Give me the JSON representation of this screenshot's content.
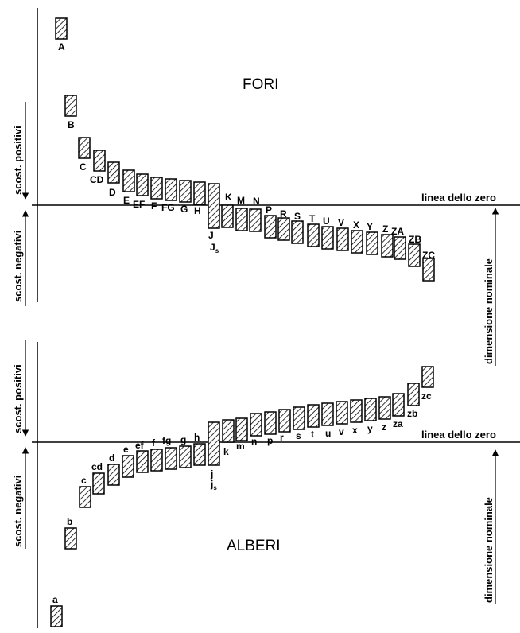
{
  "holes": {
    "title": "FORI",
    "zero_line_label": "linea dello zero",
    "positive_label": "scost. positivi",
    "negative_label": "scost. negativi",
    "nominal_label": "dimensione nominale",
    "zones": [
      "A",
      "B",
      "C",
      "CD",
      "D",
      "E",
      "EF",
      "F",
      "FG",
      "G",
      "H",
      "J",
      "K",
      "M",
      "N",
      "P",
      "R",
      "S",
      "T",
      "U",
      "V",
      "X",
      "Y",
      "Z",
      "ZA",
      "ZB",
      "ZC"
    ],
    "extra_labels": [
      "Js"
    ]
  },
  "shafts": {
    "title": "ALBERI",
    "zero_line_label": "linea dello zero",
    "positive_label": "scost. positivi",
    "negative_label": "scost. negativi",
    "nominal_label": "dimensione nominale",
    "zones": [
      "a",
      "b",
      "c",
      "cd",
      "d",
      "e",
      "ef",
      "f",
      "fg",
      "g",
      "h",
      "j",
      "k",
      "m",
      "n",
      "p",
      "r",
      "s",
      "t",
      "u",
      "v",
      "x",
      "y",
      "z",
      "za",
      "zb",
      "zc"
    ],
    "extra_labels": [
      "js"
    ]
  }
}
